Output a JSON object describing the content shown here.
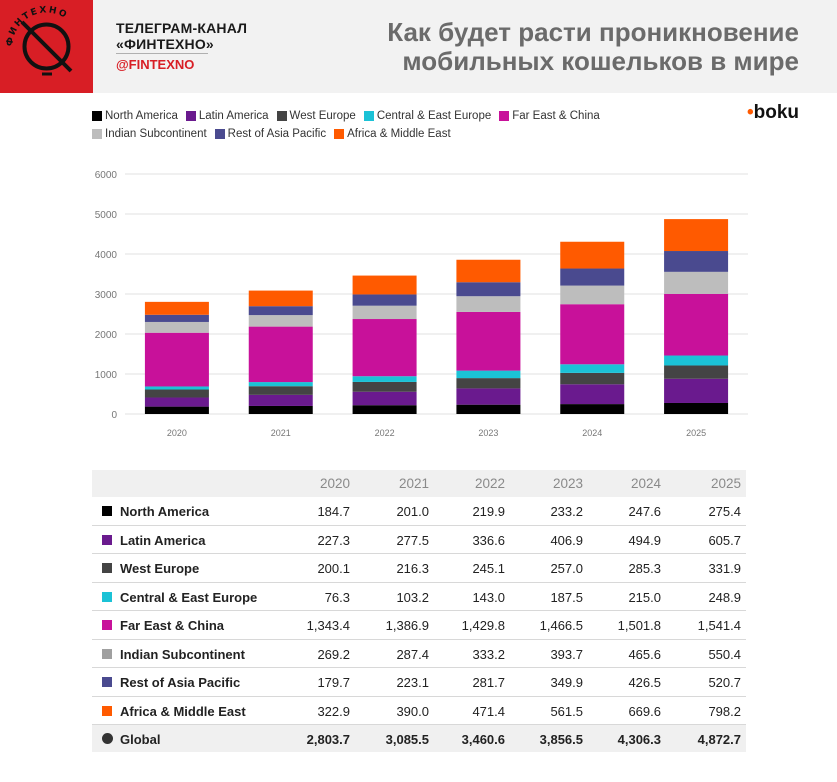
{
  "header": {
    "channel_line1": "ТЕЛЕГРАМ-КАНАЛ",
    "channel_line2": "«ФИНТЕХНО»",
    "handle": "@FINTEXNO",
    "title_line1": "Как будет расти проникновение",
    "title_line2": "мобильных кошельков в мире",
    "logo_text": "ФИНТЕХНО",
    "brand": "boku",
    "brand_dot": "•"
  },
  "colors": {
    "north_america": "#000000",
    "latin_america": "#6a1a8e",
    "west_europe": "#444444",
    "central_east_europe": "#1bc2d6",
    "far_east_china": "#c8119a",
    "indian_subcontinent": "#bdbdbd",
    "rest_of_asia_pacific": "#4a4a8f",
    "africa_middle_east": "#ff5a00",
    "header_red": "#d81e25"
  },
  "chart_data": {
    "type": "bar",
    "stacked": true,
    "categories": [
      "2020",
      "2021",
      "2022",
      "2023",
      "2024",
      "2025"
    ],
    "ylim": [
      0,
      6000
    ],
    "yticks": [
      "0",
      "1000",
      "2000",
      "3000",
      "4000",
      "5000",
      "6000"
    ],
    "grid": true,
    "legend_position": "top-left",
    "series": [
      {
        "name": "North America",
        "color": "#000000",
        "values": [
          184.7,
          201.0,
          219.9,
          233.2,
          247.6,
          275.4
        ]
      },
      {
        "name": "Latin America",
        "color": "#6a1a8e",
        "values": [
          227.3,
          277.5,
          336.6,
          406.9,
          494.9,
          605.7
        ]
      },
      {
        "name": "West Europe",
        "color": "#444444",
        "values": [
          200.1,
          216.3,
          245.1,
          257.0,
          285.3,
          331.9
        ]
      },
      {
        "name": "Central & East Europe",
        "color": "#1bc2d6",
        "values": [
          76.3,
          103.2,
          143.0,
          187.5,
          215.0,
          248.9
        ]
      },
      {
        "name": "Far East & China",
        "color": "#c8119a",
        "values": [
          1343.4,
          1386.9,
          1429.8,
          1466.5,
          1501.8,
          1541.4
        ]
      },
      {
        "name": "Indian Subcontinent",
        "color": "#bdbdbd",
        "values": [
          269.2,
          287.4,
          333.2,
          393.7,
          465.6,
          550.4
        ]
      },
      {
        "name": "Rest of Asia Pacific",
        "color": "#4a4a8f",
        "values": [
          179.7,
          223.1,
          281.7,
          349.9,
          426.5,
          520.7
        ]
      },
      {
        "name": "Africa & Middle East",
        "color": "#ff5a00",
        "values": [
          322.9,
          390.0,
          471.4,
          561.5,
          669.6,
          798.2
        ]
      }
    ]
  },
  "table": {
    "years": [
      "2020",
      "2021",
      "2022",
      "2023",
      "2024",
      "2025"
    ],
    "rows": [
      {
        "name": "North America",
        "color": "#000000",
        "values": [
          "184.7",
          "201.0",
          "219.9",
          "233.2",
          "247.6",
          "275.4"
        ]
      },
      {
        "name": "Latin America",
        "color": "#6a1a8e",
        "values": [
          "227.3",
          "277.5",
          "336.6",
          "406.9",
          "494.9",
          "605.7"
        ]
      },
      {
        "name": "West Europe",
        "color": "#444444",
        "values": [
          "200.1",
          "216.3",
          "245.1",
          "257.0",
          "285.3",
          "331.9"
        ]
      },
      {
        "name": "Central & East Europe",
        "color": "#1bc2d6",
        "values": [
          "76.3",
          "103.2",
          "143.0",
          "187.5",
          "215.0",
          "248.9"
        ]
      },
      {
        "name": "Far East & China",
        "color": "#c8119a",
        "values": [
          "1,343.4",
          "1,386.9",
          "1,429.8",
          "1,466.5",
          "1,501.8",
          "1,541.4"
        ]
      },
      {
        "name": "Indian Subcontinent",
        "color": "#a0a0a0",
        "values": [
          "269.2",
          "287.4",
          "333.2",
          "393.7",
          "465.6",
          "550.4"
        ]
      },
      {
        "name": "Rest of Asia Pacific",
        "color": "#4a4a8f",
        "values": [
          "179.7",
          "223.1",
          "281.7",
          "349.9",
          "426.5",
          "520.7"
        ]
      },
      {
        "name": "Africa & Middle East",
        "color": "#ff5a00",
        "values": [
          "322.9",
          "390.0",
          "471.4",
          "561.5",
          "669.6",
          "798.2"
        ]
      }
    ],
    "global": {
      "name": "Global",
      "color": "#333333",
      "values": [
        "2,803.7",
        "3,085.5",
        "3,460.6",
        "3,856.5",
        "4,306.3",
        "4,872.7"
      ]
    }
  }
}
